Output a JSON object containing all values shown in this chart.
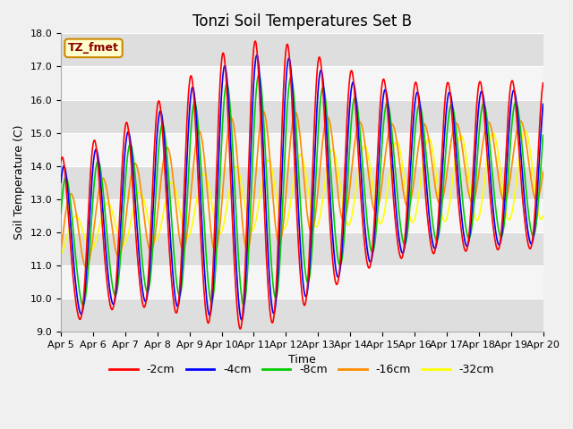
{
  "title": "Tonzi Soil Temperatures Set B",
  "xlabel": "Time",
  "ylabel": "Soil Temperature (C)",
  "ylim": [
    9.0,
    18.0
  ],
  "yticks": [
    9.0,
    10.0,
    11.0,
    12.0,
    13.0,
    14.0,
    15.0,
    16.0,
    17.0,
    18.0
  ],
  "xtick_labels": [
    "Apr 5",
    "Apr 6",
    "Apr 7",
    "Apr 8",
    "Apr 9",
    "Apr 10",
    "Apr 11",
    "Apr 12",
    "Apr 13",
    "Apr 14",
    "Apr 15",
    "Apr 16",
    "Apr 17",
    "Apr 18",
    "Apr 19",
    "Apr 20"
  ],
  "series_colors": [
    "#ff0000",
    "#0000ff",
    "#00cc00",
    "#ff8c00",
    "#ffff00"
  ],
  "series_labels": [
    "-2cm",
    "-4cm",
    "-8cm",
    "-16cm",
    "-32cm"
  ],
  "legend_label": "TZ_fmet",
  "title_fontsize": 12,
  "label_fontsize": 9,
  "tick_fontsize": 8,
  "days": 15,
  "num_points": 1440
}
